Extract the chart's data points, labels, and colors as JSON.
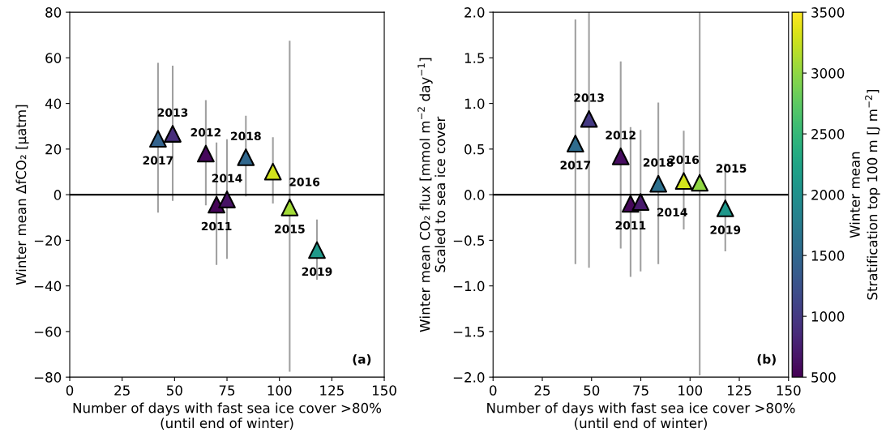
{
  "chart_data": [
    {
      "type": "scatter",
      "xlabel": "Number of days with fast sea ice cover >80%\n(until end of winter)",
      "ylabel": "Winter mean ΔfCO₂ [μatm]",
      "xlim": [
        0,
        150
      ],
      "xticks": [
        0,
        25,
        50,
        75,
        100,
        125,
        150
      ],
      "ylim": [
        -80,
        80
      ],
      "yticks": [
        {
          "value": -80,
          "label": "−80"
        },
        {
          "value": -60,
          "label": "−60"
        },
        {
          "value": -40,
          "label": "−40"
        },
        {
          "value": -20,
          "label": "−20"
        },
        0,
        20,
        40,
        60,
        80
      ],
      "marker": "triangle",
      "grid": false,
      "legend": false,
      "x": [
        42.1,
        49.1,
        64.9,
        70.0,
        75.0,
        84.0,
        96.9,
        104.9,
        117.9
      ],
      "values": [
        24.5,
        26.7,
        18.0,
        -4.4,
        -2.1,
        16.4,
        10.1,
        -5.6,
        -24.3
      ],
      "errors": [
        [
          -7.9,
          57.8
        ],
        [
          -2.7,
          56.6
        ],
        [
          -4.7,
          41.5
        ],
        [
          -30.8,
          22.9
        ],
        [
          -28.1,
          24.3
        ],
        [
          -0.8,
          34.6
        ],
        [
          -3.9,
          25.2
        ],
        [
          -77.6,
          67.5
        ],
        [
          -37.3,
          -10.9
        ]
      ],
      "colors": [
        "#33638d",
        "#472d7b",
        "#46085c",
        "#450457",
        "#471365",
        "#31688e",
        "#d2e21b",
        "#a2da37",
        "#20998a"
      ],
      "ref_lines": [
        {
          "axis": "y",
          "value": 0,
          "color": "#000000"
        }
      ],
      "annotations": [
        {
          "text": "2017",
          "x": 42.1,
          "y": 24.5
        },
        {
          "text": "2013",
          "x": 49.1,
          "y": 26.7
        },
        {
          "text": "2012",
          "x": 64.9,
          "y": 18.0
        },
        {
          "text": "2011",
          "x": 70.0,
          "y": -4.4
        },
        {
          "text": "2014",
          "x": 75.0,
          "y": -2.1
        },
        {
          "text": "2018",
          "x": 84.0,
          "y": 16.4
        },
        {
          "text": "2016",
          "x": 96.9,
          "y": 10.1
        },
        {
          "text": "2015",
          "x": 104.9,
          "y": -5.6
        },
        {
          "text": "2019",
          "x": 117.9,
          "y": -24.3
        },
        "(a)"
      ]
    },
    {
      "type": "scatter",
      "xlabel": "Number of days with fast sea ice cover >80%\n(until end of winter)",
      "ylabel": "Winter mean CO₂ flux [mmol m$^{−2}$ day$^{−1}$]\nScaled to sea ice cover",
      "xlim": [
        0,
        150
      ],
      "xticks": [
        0,
        25,
        50,
        75,
        100,
        125,
        150
      ],
      "ylim": [
        -2.0,
        2.0
      ],
      "yticks": [
        {
          "value": -2.0,
          "label": "−2.0"
        },
        {
          "value": -1.5,
          "label": "−1.5"
        },
        {
          "value": -1.0,
          "label": "−1.0"
        },
        {
          "value": -0.5,
          "label": "−0.5"
        },
        {
          "value": 0.0,
          "label": "0.0"
        },
        {
          "value": 0.5,
          "label": "0.5"
        },
        {
          "value": 1.0,
          "label": "1.0"
        },
        {
          "value": 1.5,
          "label": "1.5"
        },
        {
          "value": 2.0,
          "label": "2.0"
        }
      ],
      "marker": "triangle",
      "grid": false,
      "legend": false,
      "clim": [
        500,
        3500
      ],
      "cticks": [
        500,
        1000,
        1500,
        2000,
        2500,
        3000,
        3500
      ],
      "clabel": "Winter mean\nStratification top 100 m [J m$^{−2}$]",
      "x": [
        41.8,
        48.7,
        64.8,
        69.8,
        74.9,
        83.9,
        96.8,
        104.9,
        117.9
      ],
      "values": [
        0.56,
        0.83,
        0.42,
        -0.1,
        -0.08,
        0.12,
        0.15,
        0.13,
        -0.15
      ],
      "errors": [
        [
          -0.76,
          1.92
        ],
        [
          -0.8,
          2.0
        ],
        [
          -0.59,
          1.46
        ],
        [
          -0.9,
          0.74
        ],
        [
          -0.84,
          0.71
        ],
        [
          -0.76,
          1.01
        ],
        [
          -0.38,
          0.7
        ],
        [
          -1.98,
          2.0
        ],
        [
          -0.62,
          0.34
        ]
      ],
      "cvalues": [
        1550,
        1000,
        600,
        550,
        700,
        1600,
        3300,
        3000,
        2100
      ],
      "ref_lines": [
        {
          "axis": "y",
          "value": 0,
          "color": "#000000"
        }
      ],
      "annotations": [
        {
          "text": "2017",
          "x": 41.8,
          "y": 0.56
        },
        {
          "text": "2013",
          "x": 48.7,
          "y": 0.83
        },
        {
          "text": "2012",
          "x": 64.8,
          "y": 0.42
        },
        {
          "text": "2011",
          "x": 69.8,
          "y": -0.1
        },
        {
          "text": "2014",
          "x": 74.9,
          "y": -0.08
        },
        {
          "text": "2018",
          "x": 83.9,
          "y": 0.12
        },
        {
          "text": "2016",
          "x": 96.8,
          "y": 0.15
        },
        {
          "text": "2015",
          "x": 104.9,
          "y": 0.13
        },
        {
          "text": "2019",
          "x": 117.9,
          "y": -0.15
        },
        "(b)"
      ]
    }
  ]
}
